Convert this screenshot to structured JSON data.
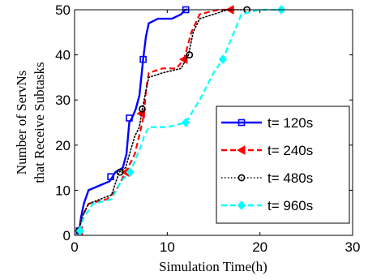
{
  "chart_data": {
    "type": "line",
    "xlabel": "Simulation Time(h)",
    "ylabel": [
      "Number of ServNs",
      "that Receive Subtasks"
    ],
    "xlim": [
      0,
      30
    ],
    "ylim": [
      0,
      50
    ],
    "xticks": [
      "0",
      "10",
      "20",
      "30"
    ],
    "yticks": [
      "0",
      "10",
      "20",
      "30",
      "40",
      "50"
    ],
    "grid": false,
    "legend_position": "right",
    "series": [
      {
        "name": "t= 120s",
        "color": "#0000ff",
        "dash": "solid",
        "marker": "square",
        "x": [
          0.5,
          0.7,
          1.0,
          1.5,
          3.8,
          4.1,
          4.4,
          5.2,
          5.6,
          5.9,
          6.2,
          6.6,
          7.0,
          7.4,
          7.7,
          8.0,
          9.0,
          10.5,
          11.5,
          11.9,
          12.2
        ],
        "y": [
          1,
          4,
          7,
          10,
          12,
          13,
          14,
          15,
          18,
          25,
          26,
          28,
          31,
          39,
          44,
          47,
          48,
          48,
          49,
          50,
          50
        ],
        "markers_x": [
          0.5,
          3.9,
          5.9,
          7.4,
          12.0
        ],
        "markers_y": [
          1,
          13,
          26,
          39,
          50
        ]
      },
      {
        "name": "t= 240s",
        "color": "#ff0000",
        "dash": "dashed",
        "marker": "triangle-left",
        "x": [
          0.5,
          0.8,
          1.5,
          3.5,
          4.5,
          5.0,
          5.5,
          6.5,
          7.2,
          7.5,
          7.7,
          8.0,
          9.5,
          11.0,
          11.8,
          12.2,
          12.6,
          13.5,
          15.5,
          17.0
        ],
        "y": [
          1,
          4,
          7,
          8,
          10,
          12,
          14,
          18,
          24,
          27,
          32,
          36,
          37,
          37,
          39,
          42,
          45,
          49,
          50,
          50
        ],
        "markers_x": [
          0.5,
          5.5,
          7.2,
          11.8,
          16.8
        ],
        "markers_y": [
          1,
          14,
          27,
          39,
          50
        ]
      },
      {
        "name": "t= 480s",
        "color": "#000000",
        "dash": "dotted",
        "marker": "circle",
        "x": [
          0.5,
          0.8,
          1.5,
          4.0,
          4.8,
          5.5,
          6.5,
          7.0,
          7.3,
          7.6,
          8.0,
          9.5,
          11.5,
          12.3,
          12.8,
          13.5,
          15.0,
          16.5,
          18.5
        ],
        "y": [
          1,
          4,
          7,
          9,
          14,
          15,
          22,
          24,
          28,
          31,
          35,
          36,
          37,
          40,
          45,
          48,
          49,
          50,
          50
        ],
        "markers_x": [
          0.5,
          4.9,
          7.3,
          12.4,
          18.6
        ],
        "markers_y": [
          1,
          14,
          28,
          40,
          50
        ]
      },
      {
        "name": "t= 960s",
        "color": "#00ffff",
        "dash": "dashed",
        "marker": "diamond",
        "x": [
          0.5,
          1.0,
          2.0,
          4.0,
          5.0,
          6.0,
          6.8,
          7.2,
          7.5,
          8.0,
          10.0,
          12.0,
          13.5,
          15.0,
          16.0,
          17.0,
          18.0,
          20.0,
          22.3
        ],
        "y": [
          1,
          4,
          7,
          8,
          12,
          14,
          18,
          20,
          22,
          24,
          24,
          25,
          30,
          36,
          39,
          44,
          49,
          50,
          50
        ],
        "markers_x": [
          0.6,
          6.0,
          12.0,
          16.0,
          22.3
        ],
        "markers_y": [
          1,
          14,
          25,
          39,
          50
        ]
      }
    ]
  }
}
